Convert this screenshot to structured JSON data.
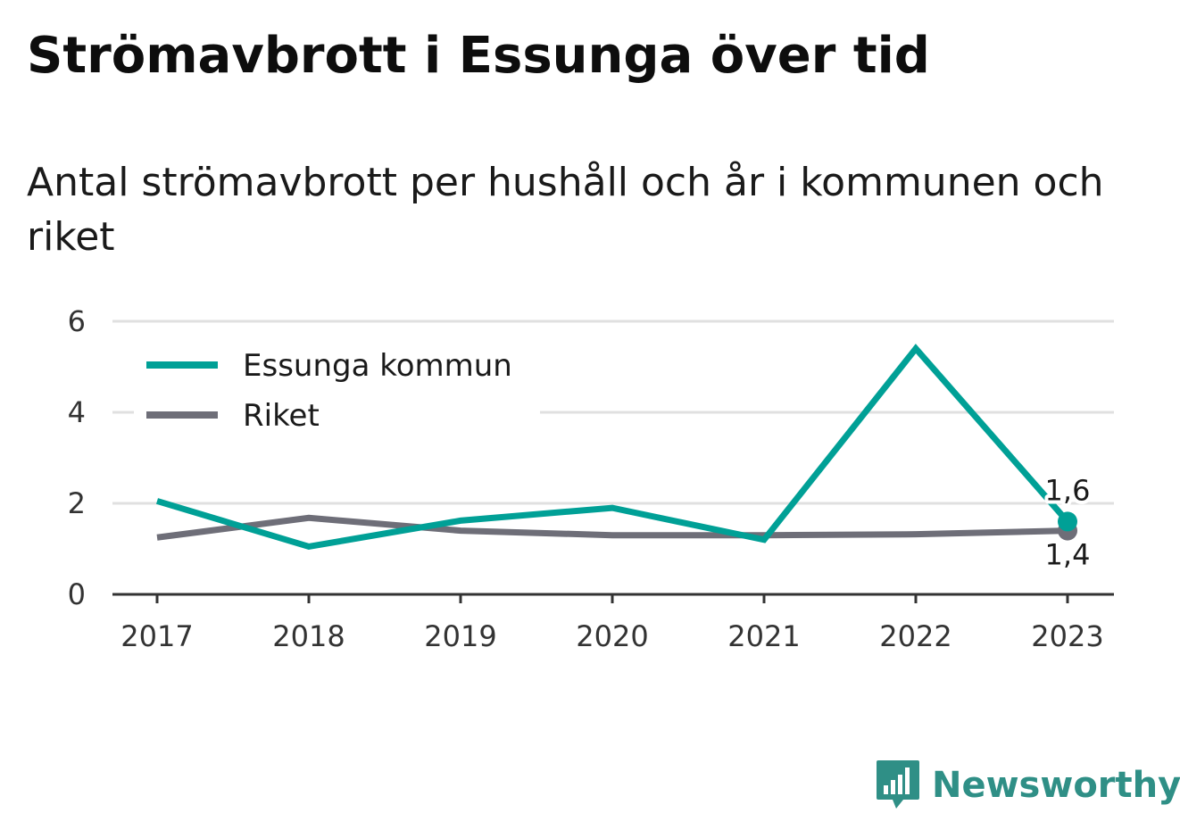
{
  "title": "Strömavbrott i Essunga över tid",
  "subtitle": "Antal strömavbrott per hushåll och år i kommunen och riket",
  "brand": {
    "name": "Newsworthy",
    "icon": "bar-chart-speech-bubble-icon"
  },
  "colors": {
    "kommun": "#00A096",
    "riket": "#6E6E78",
    "grid": "#E0E0E0",
    "axis": "#333333"
  },
  "chart_data": {
    "type": "line",
    "title": "Strömavbrott i Essunga över tid",
    "subtitle": "Antal strömavbrott per hushåll och år i kommunen och riket",
    "xlabel": "",
    "ylabel": "",
    "x": [
      "2017",
      "2018",
      "2019",
      "2020",
      "2021",
      "2022",
      "2023"
    ],
    "ylim": [
      0,
      6
    ],
    "yticks": [
      "0",
      "2",
      "4",
      "6"
    ],
    "grid": true,
    "legend_position": "top-left",
    "series": [
      {
        "name": "Essunga kommun",
        "values": [
          2.05,
          1.05,
          1.62,
          1.9,
          1.2,
          5.4,
          1.6
        ],
        "end_label": "1,6"
      },
      {
        "name": "Riket",
        "values": [
          1.25,
          1.68,
          1.4,
          1.3,
          1.3,
          1.32,
          1.4
        ],
        "end_label": "1,4"
      }
    ]
  }
}
